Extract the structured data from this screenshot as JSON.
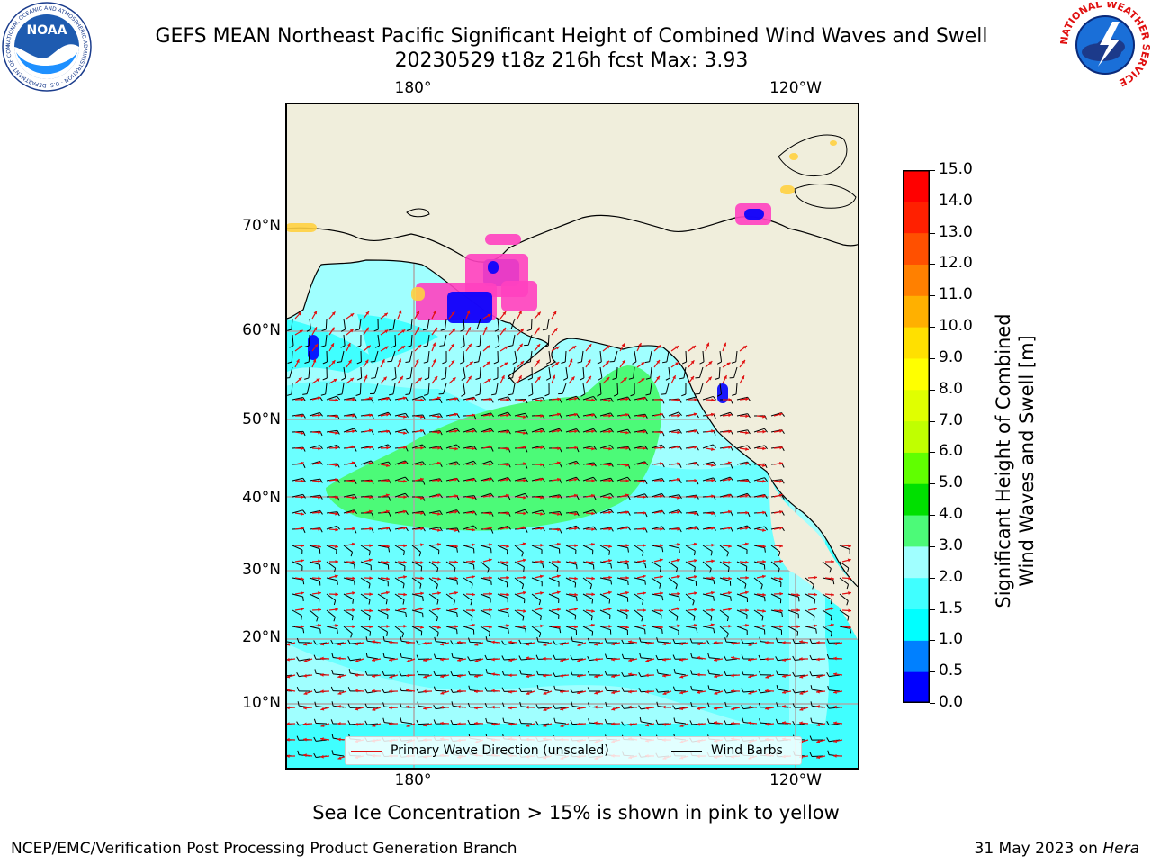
{
  "header": {
    "title_line1": "GEFS MEAN Northeast Pacific Significant Height of Combined Wind Waves and Swell",
    "title_line2": "20230529 t18z 216h fcst   Max: 3.93",
    "noaa_logo_text": "NOAA",
    "noaa_ring_text": "NATIONAL OCEANIC AND ATMOSPHERIC ADMINISTRATION · U.S. DEPARTMENT OF COMMERCE",
    "nws_ring_text": "NATIONAL WEATHER SERVICE"
  },
  "map": {
    "lon_labels": [
      "180°",
      "120°W"
    ],
    "lat_labels": [
      "70°N",
      "60°N",
      "50°N",
      "40°N",
      "30°N",
      "20°N",
      "10°N"
    ],
    "colors": {
      "land": "#f0eedc",
      "wave_0_1_5": "#00ffff",
      "wave_1_5_2": "#40ffff",
      "wave_2_3": "#a0ffff",
      "wave_3_4": "#4cfa78",
      "wave_direction": "#e01010",
      "wind_barbs": "#000000",
      "sea_ice_high": "#0000ff",
      "sea_ice_mid": "#ff40c0",
      "sea_ice_low": "#ffd040",
      "grid": "#aaaaaa"
    }
  },
  "legend": {
    "wave_label": "Primary Wave Direction (unscaled)",
    "wind_label": "Wind Barbs"
  },
  "colorbar": {
    "label_line1": "Significant Height of Combined",
    "label_line2": "Wind Waves and Swell [m]",
    "ticks": [
      "0.0",
      "0.5",
      "1.0",
      "1.5",
      "2.0",
      "3.0",
      "4.0",
      "5.0",
      "6.0",
      "7.0",
      "8.0",
      "9.0",
      "10.0",
      "11.0",
      "12.0",
      "13.0",
      "14.0",
      "15.0"
    ],
    "colors": [
      "#0000ff",
      "#0080ff",
      "#00ffff",
      "#40ffff",
      "#a0ffff",
      "#4cfa78",
      "#00e000",
      "#60ff00",
      "#c0ff00",
      "#e0ff00",
      "#ffff00",
      "#ffe000",
      "#ffb000",
      "#ff8000",
      "#ff5000",
      "#ff2000",
      "#ff0000"
    ]
  },
  "footer": {
    "subtitle": "Sea Ice Concentration > 15% is shown in pink to yellow",
    "left": "NCEP/EMC/Verification Post Processing Product Generation Branch",
    "date": "31 May 2023 on ",
    "machine": "Hera"
  }
}
